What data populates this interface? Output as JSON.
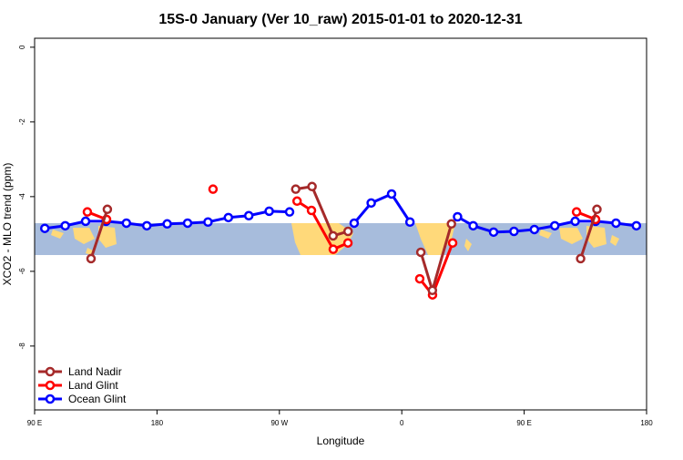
{
  "chart_data": {
    "type": "line",
    "title": "15S-0 January (Ver 10_raw)   2015-01-01 to 2020-12-31",
    "x_label": "Longitude",
    "y_label": "XCO2 - MLO trend (ppm)",
    "xlim": [
      90,
      540
    ],
    "ylim": [
      -9.71,
      0.24
    ],
    "xticks": [
      {
        "value": 90,
        "label": "90 E"
      },
      180,
      {
        "value": 270,
        "label": "90 W"
      },
      {
        "value": 360,
        "label": "0"
      },
      {
        "value": 450,
        "label": "90 E"
      },
      {
        "value": 540,
        "label": "180"
      }
    ],
    "yticks": [
      0,
      -2,
      -4,
      -6,
      -8
    ],
    "legend": "bottom-left",
    "series": [
      {
        "name": "Land Nadir",
        "color": "#a52a2a",
        "x": [
          131.5,
          143.5,
          null,
          282,
          294,
          309.5,
          320.5,
          null,
          374,
          382.5,
          396.5,
          null,
          491.5,
          503.5
        ],
        "values": [
          -5.66,
          -4.34,
          null,
          -3.8,
          -3.73,
          -5.05,
          -4.93,
          null,
          -5.49,
          -6.51,
          -4.73,
          null,
          -5.66,
          -4.34
        ]
      },
      {
        "name": "Land Glint",
        "color": "#ff0000",
        "x": [
          128.8,
          142.9,
          null,
          221.2,
          null,
          283,
          293.6,
          309.6,
          320.4,
          null,
          373.2,
          382.6,
          397.4,
          null,
          488.5,
          502.5
        ],
        "values": [
          -4.41,
          -4.61,
          null,
          -3.8,
          null,
          -4.12,
          -4.37,
          -5.41,
          -5.24,
          null,
          -6.2,
          -6.63,
          -5.24,
          null,
          -4.41,
          -4.61
        ]
      },
      {
        "name": "Ocean Glint",
        "color": "#0000ff",
        "x": [
          97.5,
          112.5,
          127.5,
          142.5,
          157.5,
          172.5,
          187.5,
          202.5,
          217.5,
          232.5,
          247.5,
          262.5,
          277.5,
          null,
          325,
          337.5,
          352.5,
          366,
          null,
          401,
          412.5,
          427.5,
          442.5,
          457.5,
          472.5,
          487.5,
          502.5,
          517.5,
          532.5
        ],
        "values": [
          -4.85,
          -4.78,
          -4.66,
          -4.66,
          -4.71,
          -4.78,
          -4.73,
          -4.71,
          -4.68,
          -4.56,
          -4.51,
          -4.39,
          -4.41,
          null,
          -4.71,
          -4.17,
          -3.93,
          -4.68,
          null,
          -4.54,
          -4.78,
          -4.95,
          -4.93,
          -4.88,
          -4.78,
          -4.66,
          -4.66,
          -4.71,
          -4.78
        ]
      }
    ]
  }
}
